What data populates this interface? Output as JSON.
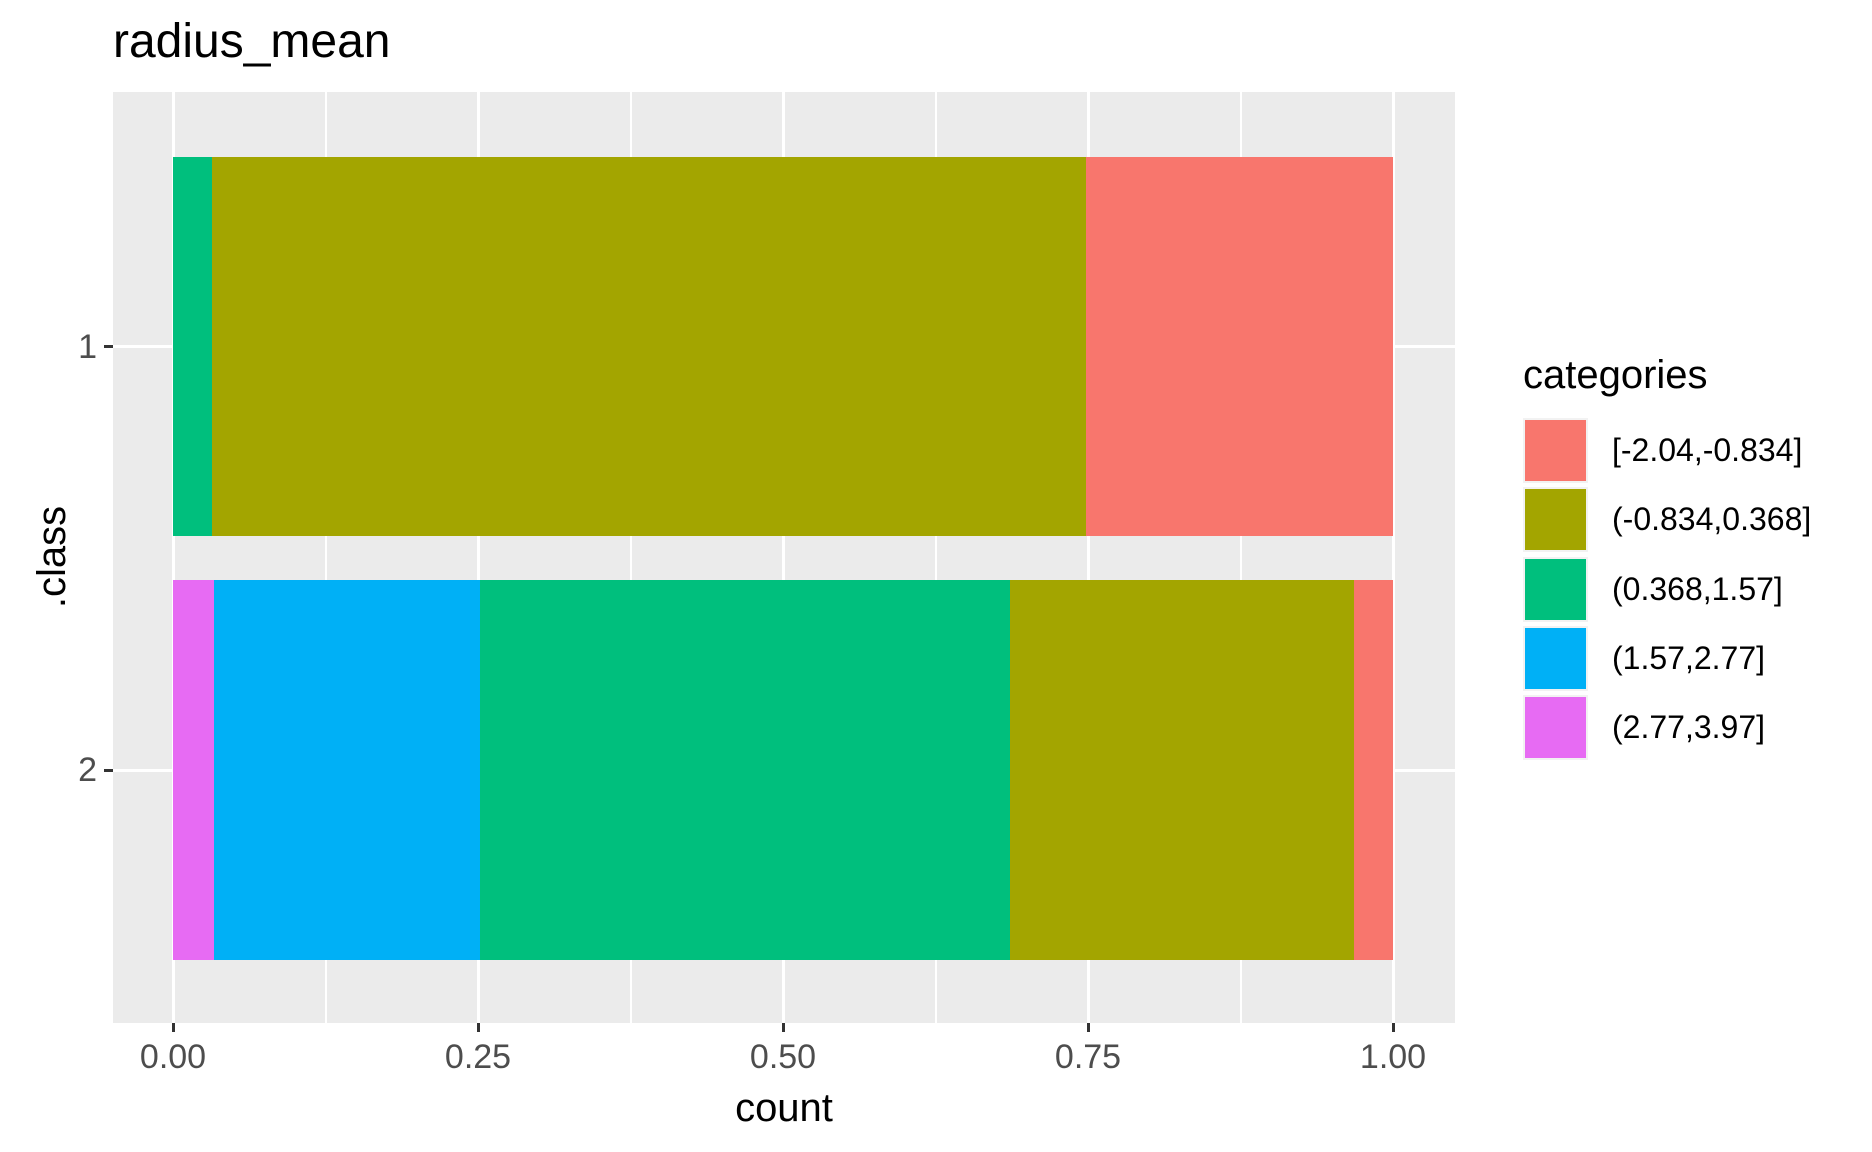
{
  "title": "radius_mean",
  "axes": {
    "x": {
      "title": "count",
      "ticks": [
        "0.00",
        "0.25",
        "0.50",
        "0.75",
        "1.00"
      ],
      "tick_values": [
        0,
        0.25,
        0.5,
        0.75,
        1.0
      ],
      "minor_values": [
        0.125,
        0.375,
        0.625,
        0.875
      ],
      "range": [
        0,
        1
      ]
    },
    "y": {
      "title": ".class",
      "ticks": [
        "1",
        "2"
      ]
    }
  },
  "legend": {
    "title": "categories"
  },
  "colors": {
    "panel_background": "#EBEBEB",
    "gridline": "#FFFFFF",
    "tick_mark": "#333333",
    "tick_label": "#4D4D4D",
    "text": "#000000",
    "legend_key_background": "#F2F2F2"
  },
  "chart_data": {
    "type": "bar",
    "orientation": "horizontal",
    "stacking": "fill",
    "title": "radius_mean",
    "xlabel": "count",
    "ylabel": ".class",
    "xlim": [
      0,
      1
    ],
    "grid": true,
    "legend_position": "right",
    "categories": [
      "1",
      "2"
    ],
    "series": [
      {
        "name": "[-2.04,-0.834]",
        "color": "#F8766D",
        "values": [
          0.252,
          0.032
        ]
      },
      {
        "name": "(-0.834,0.368]",
        "color": "#A3A500",
        "values": [
          0.716,
          0.282
        ]
      },
      {
        "name": "(0.368,1.57]",
        "color": "#00BF7D",
        "values": [
          0.032,
          0.434
        ]
      },
      {
        "name": "(1.57,2.77]",
        "color": "#00B0F6",
        "values": [
          0.0,
          0.218
        ]
      },
      {
        "name": "(2.77,3.97]",
        "color": "#E76BF3",
        "values": [
          0.0,
          0.034
        ]
      }
    ],
    "stack_order_left_to_right": "reverse of series order (last legend entry drawn first)"
  }
}
